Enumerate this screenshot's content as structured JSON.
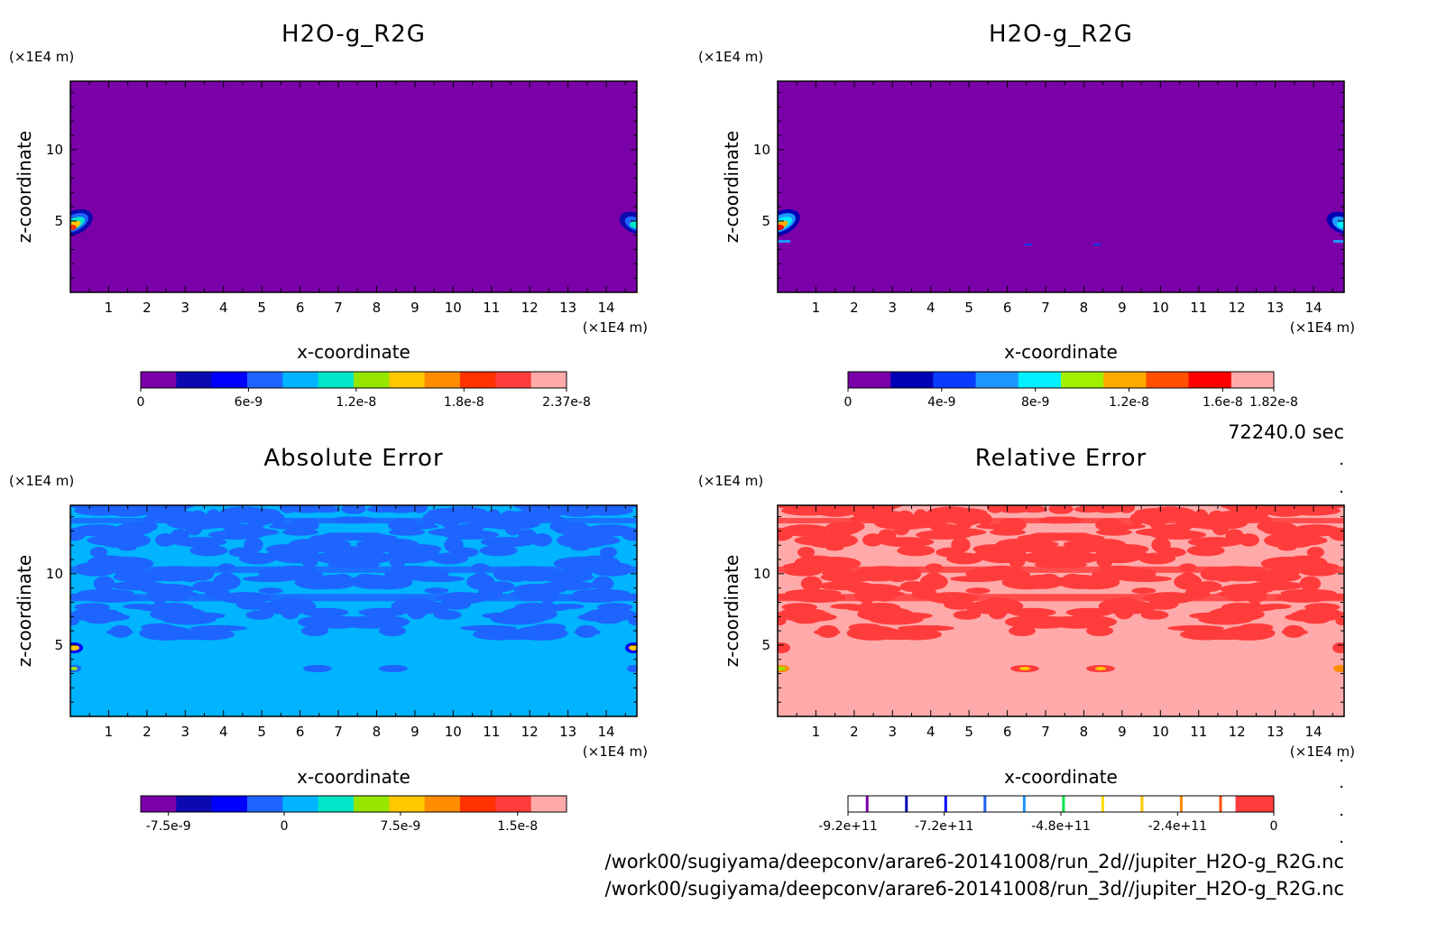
{
  "chart_data": [
    {
      "type": "heatmap",
      "title": "H2O-g_R2G",
      "xlabel": "x-coordinate",
      "ylabel": "z-coordinate",
      "x_unit": "(×1E4 m)",
      "y_unit": "(×1E4 m)",
      "xlim": [
        0,
        14.8
      ],
      "ylim": [
        0,
        14.8
      ],
      "x_ticks": [
        "1",
        "2",
        "3",
        "4",
        "5",
        "6",
        "7",
        "8",
        "9",
        "10",
        "11",
        "12",
        "13",
        "14"
      ],
      "y_ticks": [
        "5",
        "10"
      ],
      "background_color": "#7a00a8",
      "colorbar": {
        "colors": [
          "#7a00a8",
          "#0a0ab0",
          "#0000ff",
          "#1e64ff",
          "#00b4ff",
          "#00e6c8",
          "#96e600",
          "#ffc800",
          "#ff8c00",
          "#ff3200",
          "#ff3c3c",
          "#ffaaaa"
        ],
        "tick_labels": [
          "0",
          "6e-9",
          "1.2e-8",
          "1.8e-8",
          "2.37e-8"
        ],
        "min": 0,
        "max": 2.37e-08
      },
      "features": [
        {
          "x": 0.2,
          "z": 5.0,
          "kind": "local maximum, left edge"
        },
        {
          "x": 14.6,
          "z": 5.0,
          "kind": "local maximum, right edge"
        }
      ]
    },
    {
      "type": "heatmap",
      "title": "H2O-g_R2G",
      "xlabel": "x-coordinate",
      "ylabel": "z-coordinate",
      "x_unit": "(×1E4 m)",
      "y_unit": "(×1E4 m)",
      "xlim": [
        0,
        14.8
      ],
      "ylim": [
        0,
        14.8
      ],
      "x_ticks": [
        "1",
        "2",
        "3",
        "4",
        "5",
        "6",
        "7",
        "8",
        "9",
        "10",
        "11",
        "12",
        "13",
        "14"
      ],
      "y_ticks": [
        "5",
        "10"
      ],
      "background_color": "#7a00a8",
      "colorbar": {
        "colors": [
          "#7a00a8",
          "#0000b4",
          "#0a3cff",
          "#1e96ff",
          "#00f0ff",
          "#a0f000",
          "#ffaa00",
          "#ff5000",
          "#ff0000",
          "#ffaaaa"
        ],
        "tick_labels": [
          "0",
          "4e-9",
          "8e-9",
          "1.2e-8",
          "1.6e-8",
          "1.82e-8"
        ],
        "min": 0,
        "max": 1.82e-08
      },
      "features": [
        {
          "x": 0.2,
          "z": 5.0,
          "kind": "local maximum, left edge"
        },
        {
          "x": 14.6,
          "z": 5.0,
          "kind": "local maximum, right edge"
        }
      ]
    },
    {
      "type": "heatmap",
      "title": "Absolute Error",
      "xlabel": "x-coordinate",
      "ylabel": "z-coordinate",
      "x_unit": "(×1E4 m)",
      "y_unit": "(×1E4 m)",
      "xlim": [
        0,
        14.8
      ],
      "ylim": [
        0,
        14.8
      ],
      "x_ticks": [
        "1",
        "2",
        "3",
        "4",
        "5",
        "6",
        "7",
        "8",
        "9",
        "10",
        "11",
        "12",
        "13",
        "14"
      ],
      "y_ticks": [
        "5",
        "10"
      ],
      "background_color": "#00b4ff",
      "pattern_color": "#1e64ff",
      "colorbar": {
        "colors": [
          "#7a00a8",
          "#0a0ab0",
          "#0000ff",
          "#1e64ff",
          "#00b4ff",
          "#00e6c8",
          "#96e600",
          "#ffc800",
          "#ff8c00",
          "#ff3200",
          "#ff3c3c",
          "#ffaaaa"
        ],
        "tick_labels": [
          "-7.5e-9",
          "0",
          "7.5e-9",
          "1.5e-8"
        ],
        "min": -9e-09,
        "max": 1.8e-08
      }
    },
    {
      "type": "heatmap",
      "title": "Relative Error",
      "xlabel": "x-coordinate",
      "ylabel": "z-coordinate",
      "x_unit": "(×1E4 m)",
      "y_unit": "(×1E4 m)",
      "xlim": [
        0,
        14.8
      ],
      "ylim": [
        0,
        14.8
      ],
      "x_ticks": [
        "1",
        "2",
        "3",
        "4",
        "5",
        "6",
        "7",
        "8",
        "9",
        "10",
        "11",
        "12",
        "13",
        "14"
      ],
      "y_ticks": [
        "5",
        "10"
      ],
      "background_color": "#ffaaaa",
      "pattern_color": "#ff3c3c",
      "colorbar": {
        "colors": [
          "#ffffff",
          "#ff3c3c"
        ],
        "line_colors": [
          "#7a00a8",
          "#0000b4",
          "#0000ff",
          "#1e64ff",
          "#1e96ff",
          "#00e650",
          "#ffdc00",
          "#ffc800",
          "#ff8c00",
          "#ff5000"
        ],
        "tick_labels": [
          "-9.2e+11",
          "-7.2e+11",
          "-4.8e+11",
          "-2.4e+11",
          "0"
        ],
        "min": -1000000000000.0,
        "max": 100000000000.0
      }
    }
  ],
  "time_label": "72240.0 sec",
  "file_paths": [
    "/work00/sugiyama/deepconv/arare6-20141008/run_2d//jupiter_H2O-g_R2G.nc",
    "/work00/sugiyama/deepconv/arare6-20141008/run_3d//jupiter_H2O-g_R2G.nc"
  ]
}
